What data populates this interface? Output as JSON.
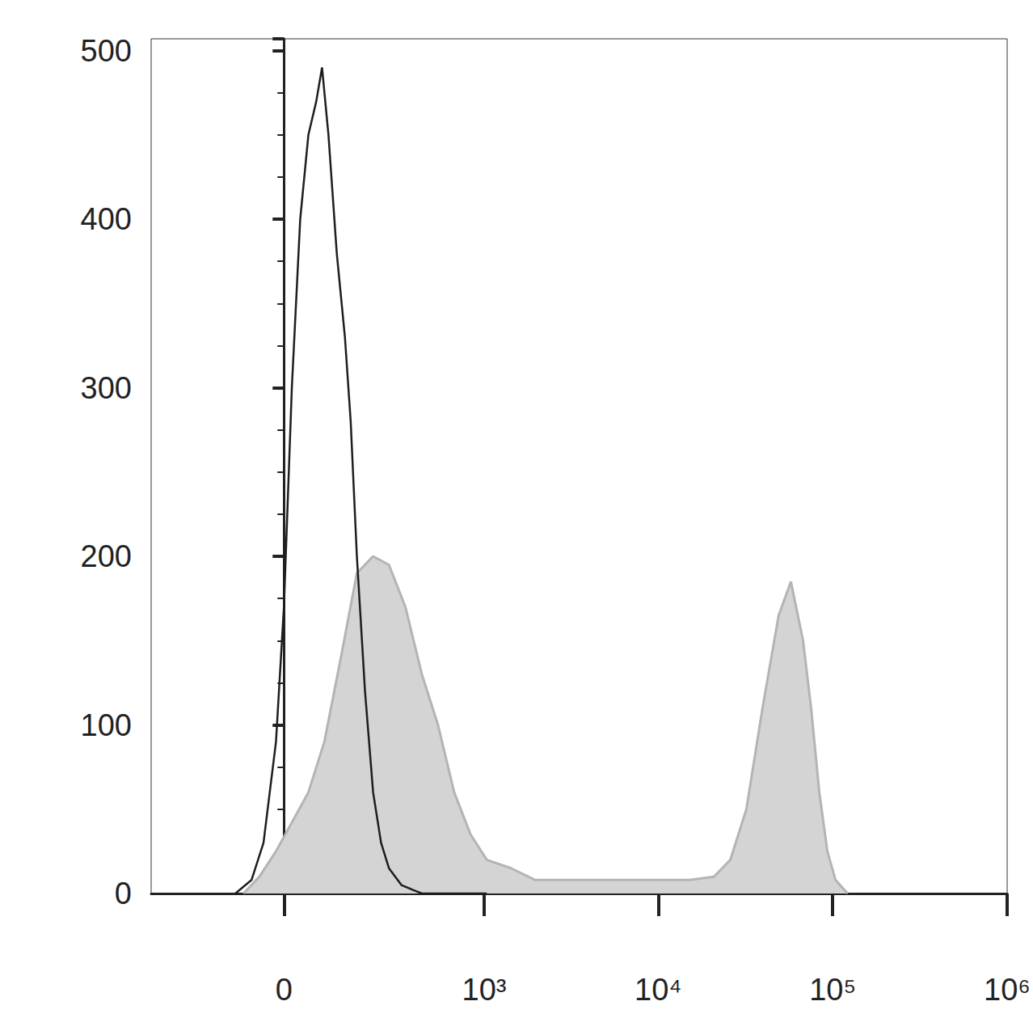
{
  "chart_data": {
    "type": "line",
    "log": "x",
    "grid": false,
    "xlim": [
      -400,
      1000000
    ],
    "xticks": [
      0,
      {
        "value": 1000,
        "label": "10³"
      },
      {
        "value": 10000,
        "label": "10⁴"
      },
      {
        "value": 100000,
        "label": "10⁵"
      },
      {
        "value": 1000000,
        "label": "10⁶"
      }
    ],
    "ylim": [
      0,
      507
    ],
    "yticks": [
      0,
      100,
      200,
      300,
      400,
      500
    ],
    "series": [
      {
        "type": "area",
        "color": "#b4b4b4",
        "x": [
          -80,
          -47,
          -15,
          47,
          80,
          118,
          160,
          210,
          268,
          341,
          430,
          537,
          669,
          834,
          1035,
          1430,
          1970,
          3030,
          5180,
          8850,
          15100,
          20900,
          25900,
          32000,
          39600,
          49000,
          57600,
          67600,
          75200,
          83800,
          93200,
          103800,
          121800
        ],
        "values": [
          0,
          10,
          25,
          60,
          90,
          140,
          190,
          200,
          195,
          170,
          130,
          100,
          60,
          35,
          20,
          15,
          8,
          8,
          8,
          8,
          8,
          10,
          20,
          50,
          110,
          165,
          185,
          150,
          110,
          60,
          25,
          8,
          0
        ]
      },
      {
        "type": "line",
        "color": "#1e1e1e",
        "x": [
          -98,
          -63,
          -39,
          -15,
          0,
          15,
          31,
          47,
          63,
          75,
          89,
          108,
          128,
          143,
          160,
          184,
          210,
          238,
          268,
          322,
          383,
          430,
          1035
        ],
        "values": [
          0,
          8,
          30,
          90,
          170,
          300,
          400,
          450,
          470,
          490,
          450,
          380,
          330,
          280,
          200,
          120,
          60,
          30,
          15,
          5,
          2,
          0,
          0
        ]
      }
    ]
  }
}
